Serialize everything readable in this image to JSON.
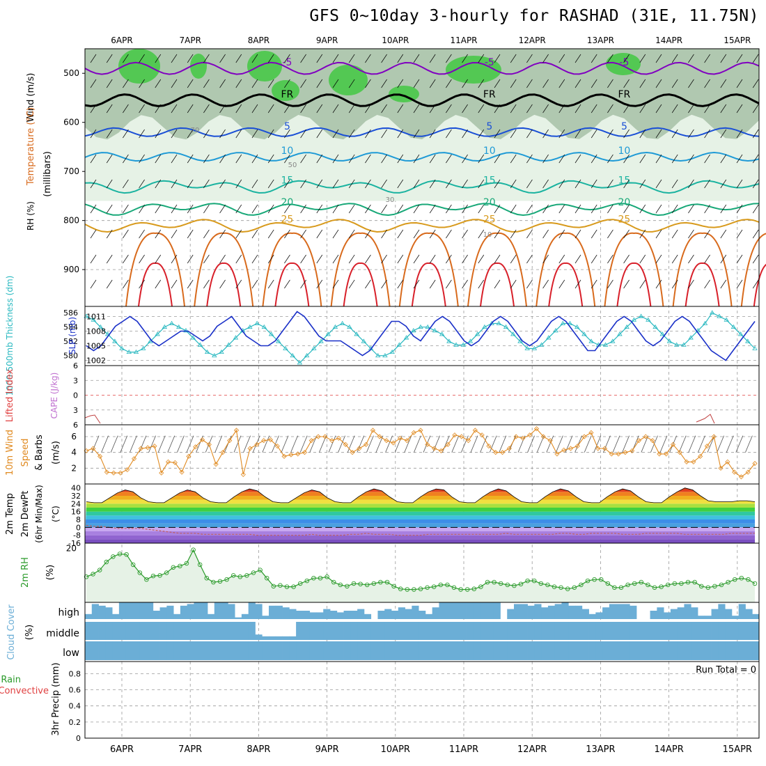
{
  "title": "GFS 0~10day 3-hourly for RASHAD (31E, 11.75N)",
  "colors": {
    "temp_cold": "#8000c0",
    "temp_freeze": "#000000",
    "temp_5": "#1a4fd6",
    "temp_10": "#1e9ad6",
    "temp_15": "#1ab3a0",
    "temp_20": "#18a878",
    "temp_25": "#d89a1c",
    "temp_30": "#d86a1c",
    "temp_35": "#d8202a",
    "thickness": "#28b8c0",
    "slp": "#1a30c8",
    "wind10m": "#e08a20",
    "rh2m": "#2a9a2a",
    "cloud": "#6baed6",
    "rh_high": "#3cc83c",
    "rh_mid": "#b0c8b0",
    "rh_low": "#e6f2e6"
  },
  "chart_data": [
    {
      "type": "heatmap",
      "panel": "upper-air cross section",
      "ylabel": "Wind (m/s)",
      "ylabel_temp": "Temperature (°C)",
      "ylabel_rh": "RH (%)",
      "ylabel_pressure": "(millibars)",
      "yticks": [
        500,
        600,
        700,
        800,
        900
      ],
      "ylim": [
        450,
        975
      ],
      "xticks_top": [
        "6APR",
        "7APR",
        "8APR",
        "9APR",
        "10APR",
        "11APR",
        "12APR",
        "13APR",
        "14APR",
        "15APR"
      ],
      "isotherms": [
        {
          "label": "-5",
          "level_mb": 490
        },
        {
          "label": "FR",
          "level_mb": 555
        },
        {
          "label": "5",
          "level_mb": 620
        },
        {
          "label": "10",
          "level_mb": 670
        },
        {
          "label": "15",
          "level_mb": 730
        },
        {
          "label": "20",
          "level_mb": 775
        },
        {
          "label": "25",
          "level_mb": 810
        }
      ],
      "rh_labels": [
        "70",
        "50",
        "30",
        "10"
      ]
    },
    {
      "type": "line",
      "panel": "thickness and slp",
      "ylabel_left": "1000-500mb Thickness (dm)",
      "ylabel_right": "SLP (mb)",
      "yticks_left": [
        580,
        582,
        584,
        586
      ],
      "yticks_right": [
        1002,
        1005,
        1008,
        1011
      ],
      "series": [
        {
          "name": "Thickness",
          "values": [
            585.5,
            585,
            584,
            583,
            582,
            581,
            580.5,
            580.5,
            581,
            582,
            583,
            584,
            584.5,
            584,
            583.5,
            582.5,
            581.5,
            580.5,
            580,
            580.5,
            581.5,
            582.5,
            583.5,
            584,
            584.5,
            584,
            583,
            582,
            581,
            580,
            579,
            580,
            581,
            582,
            583,
            584,
            584.5,
            584,
            583,
            582,
            581,
            580,
            580,
            580.5,
            581.5,
            582.5,
            583.5,
            584,
            584,
            583.5,
            583,
            582,
            581.5,
            581.5,
            582,
            583,
            584,
            584.5,
            584.5,
            584,
            583,
            582,
            581,
            581,
            581.5,
            582.5,
            583.5,
            584.5,
            584.5,
            584,
            583,
            582,
            581.5,
            581.5,
            582,
            583,
            584,
            585,
            585.5,
            585,
            584,
            583,
            582,
            581.5,
            581.5,
            582.5,
            583.5,
            584.5,
            586,
            585.5,
            585,
            584,
            583,
            582,
            581
          ]
        },
        {
          "name": "SLP",
          "values": [
            1005,
            1004,
            1005,
            1007,
            1009,
            1010,
            1011,
            1010,
            1008,
            1006,
            1005,
            1006,
            1007,
            1008,
            1008,
            1007,
            1006,
            1007,
            1009,
            1010,
            1011,
            1009,
            1007,
            1006,
            1005,
            1005,
            1006,
            1008,
            1010,
            1012,
            1011,
            1009,
            1007,
            1006,
            1006,
            1006,
            1005,
            1004,
            1003,
            1004,
            1006,
            1008,
            1010,
            1010,
            1009,
            1007,
            1006,
            1008,
            1010,
            1011,
            1010,
            1008,
            1006,
            1005,
            1006,
            1008,
            1010,
            1011,
            1010,
            1008,
            1006,
            1005,
            1006,
            1008,
            1010,
            1011,
            1010,
            1008,
            1006,
            1004,
            1004,
            1006,
            1008,
            1010,
            1011,
            1010,
            1008,
            1006,
            1005,
            1006,
            1008,
            1010,
            1011,
            1010,
            1008,
            1006,
            1004,
            1003,
            1002,
            1004,
            1006,
            1008,
            1010
          ]
        }
      ]
    },
    {
      "type": "line",
      "panel": "lifted index and cape",
      "ylabel_left": "Lifted Index",
      "ylabel_right": "CAPE (J/kg)",
      "yticks": [
        -6,
        -3,
        0,
        3,
        6
      ],
      "ytick_labels": [
        "6",
        "3",
        "0",
        "3",
        "6"
      ],
      "ylim": [
        -6,
        6
      ]
    },
    {
      "type": "line",
      "panel": "10m wind",
      "ylabel_left": "10m Wind",
      "ylabel_mid": "Speed",
      "ylabel_right": "& Barbs",
      "ylabel_units": "(m/s)",
      "yticks": [
        2,
        4,
        6
      ],
      "ylim": [
        0,
        7.5
      ],
      "series": [
        {
          "name": "Speed",
          "values": [
            4.2,
            4.5,
            3.5,
            1.5,
            1.4,
            1.4,
            1.8,
            3.2,
            4.5,
            4.6,
            4.8,
            1.4,
            2.8,
            2.7,
            1.5,
            3.5,
            4.7,
            5.6,
            5.0,
            2.5,
            4.0,
            5.5,
            6.8,
            1.2,
            4.5,
            5.0,
            5.5,
            5.6,
            4.8,
            3.5,
            3.7,
            3.8,
            4.0,
            5.5,
            6.0,
            6.0,
            5.5,
            5.8,
            5.0,
            4.0,
            4.5,
            5.0,
            6.8,
            6.0,
            5.5,
            5.2,
            5.8,
            5.5,
            6.5,
            6.8,
            5.0,
            4.5,
            4.2,
            5.0,
            6.2,
            6.0,
            5.5,
            6.8,
            6.2,
            4.8,
            4.0,
            4.0,
            4.5,
            6.0,
            5.8,
            6.2,
            7.0,
            6.0,
            5.5,
            3.8,
            4.3,
            4.5,
            4.8,
            6.0,
            6.5,
            4.5,
            4.5,
            3.8,
            3.8,
            4.0,
            4.2,
            5.5,
            6.0,
            5.5,
            3.8,
            3.8,
            5.0,
            4.0,
            2.8,
            2.8,
            3.5,
            4.8,
            6.0,
            2.0,
            2.8,
            1.5,
            0.9,
            1.5,
            2.6
          ]
        }
      ]
    },
    {
      "type": "area",
      "panel": "2m temp",
      "ylabel_left": "2m Temp",
      "ylabel_mid": "2m DewPt",
      "ylabel_right": "(6hr Min/Max)",
      "ylabel_units": "(°C)",
      "yticks": [
        -16,
        -8,
        0,
        8,
        16,
        24,
        32,
        40
      ],
      "ytick_labels": [
        "-16",
        "-8",
        "0",
        "8",
        "16",
        "24",
        "32",
        "40"
      ],
      "ylim": [
        -16,
        44
      ],
      "series": [
        {
          "name": "2m Temp",
          "values": [
            26,
            25,
            25,
            30,
            35,
            38,
            36,
            30,
            26,
            25,
            25,
            30,
            35,
            38,
            36,
            30,
            26,
            25,
            25,
            31,
            36,
            39,
            37,
            31,
            26,
            25,
            25,
            30,
            35,
            38,
            36,
            30,
            26,
            25,
            25,
            31,
            36,
            39,
            37,
            31,
            26,
            25,
            25,
            31,
            36,
            39,
            38,
            31,
            26,
            25,
            25,
            31,
            36,
            39,
            37,
            31,
            26,
            25,
            25,
            31,
            36,
            39,
            37,
            31,
            26,
            25,
            25,
            31,
            36,
            39,
            37,
            31,
            26,
            25,
            25,
            31,
            36,
            40,
            38,
            32,
            27,
            26,
            26,
            26,
            27,
            27,
            26
          ]
        },
        {
          "name": "2m DewPt",
          "values": [
            2,
            1,
            1,
            0,
            -1,
            -1,
            -1,
            -1,
            -2,
            -3,
            -4,
            -5,
            -6,
            -6,
            -6,
            -7,
            -7,
            -7,
            -7,
            -7,
            -7,
            -7,
            -8,
            -8,
            -8,
            -8,
            -8,
            -8,
            -8,
            -7,
            -8,
            -8,
            -8,
            -8,
            -7,
            -7,
            -6,
            -7,
            -7,
            -7,
            -8,
            -8,
            -8,
            -8,
            -7,
            -7,
            -7,
            -7,
            -7,
            -7,
            -7,
            -7,
            -7,
            -7,
            -6,
            -7,
            -7,
            -7,
            -7,
            -7,
            -7,
            -6,
            -6,
            -7,
            -7,
            -6,
            -6,
            -6,
            -6,
            -7,
            -7,
            -7,
            -6,
            -6,
            -6,
            -6,
            -6,
            -7,
            -7,
            -7,
            -7,
            -7,
            -7,
            -6,
            -6,
            -6,
            -6
          ]
        }
      ]
    },
    {
      "type": "area",
      "panel": "2m rh",
      "ylabel_left": "2m RH",
      "ylabel_units": "(%)",
      "yticks": [
        20
      ],
      "ylim": [
        0,
        22
      ],
      "series": [
        {
          "name": "2m RH",
          "values": [
            9.5,
            10.5,
            12,
            15,
            17,
            18,
            17.8,
            14,
            11,
            8.5,
            9.8,
            10,
            11,
            13,
            13.5,
            14.5,
            19.5,
            14,
            9,
            7.5,
            7.8,
            8.5,
            10,
            9.5,
            10,
            11,
            12,
            9,
            6,
            6.3,
            5.8,
            5.8,
            7,
            8,
            9,
            9,
            9.5,
            7.5,
            6.5,
            6,
            7,
            6.8,
            6.5,
            7,
            7.5,
            7.5,
            6,
            5,
            4.8,
            4.8,
            5,
            5.5,
            5.8,
            6.5,
            6.5,
            5.5,
            4.8,
            4.8,
            5,
            5.8,
            7.5,
            7.5,
            7,
            6.5,
            6.2,
            6.8,
            8,
            8,
            7,
            6.5,
            5.8,
            5.5,
            5,
            5.5,
            6.5,
            8,
            8.5,
            8.5,
            7,
            5.5,
            5.5,
            6.5,
            7,
            7.5,
            6.5,
            5.5,
            5.8,
            6.5,
            7,
            7,
            7.5,
            7.5,
            6,
            5.5,
            6,
            6.5,
            7.5,
            8.5,
            9,
            8.5,
            7
          ]
        }
      ]
    },
    {
      "type": "bar",
      "panel": "cloud cover",
      "ylabel_left": "Cloud Cover",
      "ylabel_units": "(%)",
      "yticks": [
        "high",
        "middle",
        "low"
      ],
      "series": [
        {
          "name": "high",
          "values": [
            30,
            90,
            80,
            70,
            30,
            100,
            100,
            100,
            100,
            100,
            50,
            70,
            80,
            30,
            80,
            90,
            100,
            100,
            30,
            100,
            100,
            90,
            10,
            30,
            100,
            90,
            20,
            80,
            80,
            70,
            60,
            50,
            50,
            40,
            40,
            60,
            50,
            40,
            50,
            50,
            60,
            30,
            0,
            50,
            60,
            50,
            70,
            60,
            80,
            50,
            30,
            70,
            100,
            100,
            100,
            100,
            100,
            100,
            100,
            100,
            100,
            0,
            60,
            90,
            90,
            80,
            90,
            70,
            80,
            90,
            100,
            80,
            80,
            60,
            30,
            40,
            70,
            90,
            90,
            90,
            80,
            0,
            0,
            50,
            70,
            40,
            60,
            70,
            90,
            70,
            20,
            20,
            60,
            90,
            60,
            20,
            90,
            60,
            30
          ]
        },
        {
          "name": "middle",
          "values": [
            100,
            100,
            100,
            100,
            100,
            100,
            100,
            100,
            100,
            100,
            100,
            100,
            100,
            100,
            100,
            100,
            100,
            100,
            100,
            100,
            100,
            100,
            100,
            100,
            100,
            30,
            20,
            20,
            20,
            20,
            20,
            100,
            100,
            100,
            100,
            100,
            100,
            100,
            100,
            100,
            100,
            100,
            100,
            100,
            100,
            100,
            100,
            100,
            100,
            100,
            100,
            100,
            100,
            100,
            100,
            100,
            100,
            100,
            100,
            100,
            100,
            100,
            100,
            100,
            100,
            100,
            100,
            100,
            100,
            100,
            100,
            100,
            100,
            100,
            100,
            100,
            100,
            100,
            100,
            100,
            100,
            100,
            100,
            100,
            100,
            100,
            100,
            100,
            100,
            100,
            100,
            100,
            100,
            100,
            100,
            100,
            100,
            100,
            100
          ]
        },
        {
          "name": "low",
          "values": [
            100,
            100,
            100,
            100,
            100,
            100,
            100,
            100,
            100,
            100,
            100,
            100,
            100,
            100,
            100,
            100,
            100,
            100,
            100,
            100,
            100,
            100,
            100,
            100,
            100,
            100,
            100,
            100,
            100,
            100,
            100,
            100,
            100,
            100,
            100,
            100,
            100,
            100,
            100,
            100,
            100,
            100,
            100,
            100,
            100,
            100,
            100,
            100,
            100,
            100,
            100,
            100,
            100,
            100,
            100,
            100,
            100,
            100,
            100,
            100,
            100,
            100,
            100,
            100,
            100,
            100,
            100,
            100,
            100,
            100,
            100,
            100,
            100,
            100,
            100,
            100,
            100,
            100,
            100,
            100,
            100,
            100,
            100,
            100,
            100,
            100,
            100,
            100,
            100,
            100,
            100,
            100,
            100,
            100,
            100,
            100,
            100,
            100,
            100
          ]
        }
      ]
    },
    {
      "type": "bar",
      "panel": "precip",
      "ylabel_left": "Total / Rain",
      "ylabel_mid": "Convective",
      "ylabel_right": "3hr Precip (mm)",
      "yticks": [
        0,
        0.2,
        0.4,
        0.6,
        0.8
      ],
      "ytick_labels": [
        "0",
        "0.2",
        "0.4",
        "0.6",
        "0.8"
      ],
      "ylim": [
        0,
        0.95
      ],
      "annotation": "Run Total = 0",
      "xticks": [
        "6APR",
        "7APR",
        "8APR",
        "9APR",
        "10APR",
        "11APR",
        "12APR",
        "13APR",
        "14APR",
        "15APR"
      ]
    }
  ]
}
